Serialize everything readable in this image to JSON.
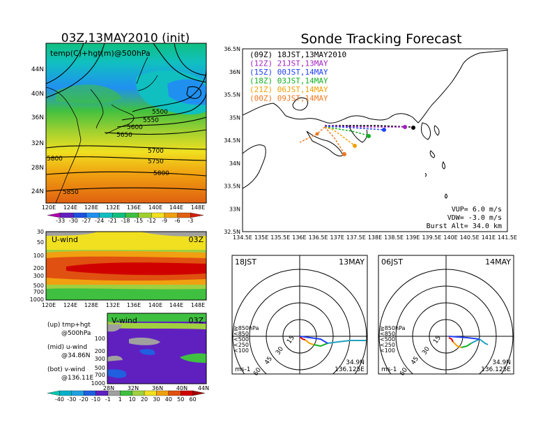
{
  "left_title": "03Z,13MAY2010 (init)",
  "right_title": "Sonde Tracking Forecast",
  "map_panel": {
    "label": "temp(C)+hgt(m)@500hPa",
    "lat_labels": [
      "44N",
      "40N",
      "36N",
      "32N",
      "28N",
      "24N"
    ],
    "lon_labels": [
      "120E",
      "124E",
      "128E",
      "132E",
      "136E",
      "140E",
      "144E",
      "148E"
    ],
    "contour_labels": [
      "5500",
      "5550",
      "5600",
      "5650",
      "5700",
      "5750",
      "5800",
      "5850",
      "5800"
    ]
  },
  "temp_colorbar": {
    "labels": [
      "-33",
      "-30",
      "-27",
      "-24",
      "-21",
      "-18",
      "-15",
      "-12",
      "-9",
      "-6",
      "-3"
    ]
  },
  "u_panel": {
    "label": "U-wind",
    "time": "03Z",
    "levels": [
      "30",
      "50",
      "100",
      "200",
      "300",
      "500",
      "700",
      "1000"
    ],
    "lon_labels": [
      "120E",
      "124E",
      "128E",
      "132E",
      "136E",
      "140E",
      "144E",
      "148E"
    ]
  },
  "v_panel": {
    "label": "V-wind",
    "time": "03Z",
    "levels": [
      "100",
      "200",
      "300",
      "500",
      "700",
      "1000"
    ],
    "lat_labels": [
      "28N",
      "32N",
      "36N",
      "40N",
      "44N"
    ]
  },
  "notes": [
    [
      "(up) tmp+hgt",
      "@500hPa"
    ],
    [
      "(mid) u-wind",
      "@34.86N"
    ],
    [
      "(bot) v-wind",
      "@136.11E"
    ]
  ],
  "wind_colorbar": {
    "labels": [
      "-40",
      "-30",
      "-20",
      "-10",
      "-1",
      "1",
      "10",
      "20",
      "30",
      "40",
      "50",
      "60"
    ]
  },
  "track_map": {
    "lat_labels": [
      "36.5N",
      "36N",
      "35.5N",
      "35N",
      "34.5N",
      "34N",
      "33.5N",
      "33N",
      "32.5N"
    ],
    "lon_labels": [
      "134.5E",
      "135E",
      "135.5E",
      "136E",
      "136.5E",
      "137E",
      "137.5E",
      "138E",
      "138.5E",
      "139E",
      "139.5E",
      "140E",
      "140.5E",
      "141E",
      "141.5E"
    ],
    "legend": [
      {
        "text": "(09Z)  18JST,13MAY2010",
        "color": "#000000"
      },
      {
        "text": "(12Z)  21JST,13MAY",
        "color": "#a020c0"
      },
      {
        "text": "(15Z)  00JST,14MAY",
        "color": "#2040ff"
      },
      {
        "text": "(18Z)  03JST,14MAY",
        "color": "#10b020"
      },
      {
        "text": "(21Z)  06JST,14MAY",
        "color": "#f0a000"
      },
      {
        "text": "(00Z)  09JST,14MAY",
        "color": "#f07820"
      }
    ],
    "params": [
      "VUP= 6.0 m/s",
      "VDW= -3.0 m/s",
      "Burst Alt= 34.0 km"
    ]
  },
  "hodographs": [
    {
      "time": "18JST",
      "date": "13MAY",
      "ring_labels": [
        "15",
        "30",
        "45",
        "60"
      ],
      "unit": "ms-1",
      "lat": "34.9N",
      "lon": "136.125E",
      "level_labels": [
        "≧850hPa",
        "<850",
        "<500",
        "<250",
        "<100"
      ]
    },
    {
      "time": "06JST",
      "date": "14MAY",
      "ring_labels": [
        "15",
        "30",
        "45",
        "60"
      ],
      "unit": "ms-1",
      "lat": "34.9N",
      "lon": "136.125E",
      "level_labels": [
        "≧850hPa",
        "<850",
        "<500",
        "<250",
        "<100"
      ]
    }
  ],
  "colors": {
    "level_colors": [
      "#e00000",
      "#f0a000",
      "#10b020",
      "#20a0c0",
      "#2040ff"
    ],
    "temp_scale": [
      "#b000b0",
      "#6020c0",
      "#2050e0",
      "#2090f0",
      "#10c0c0",
      "#10c080",
      "#40c040",
      "#a0d030",
      "#f0e020",
      "#f0a010",
      "#e06010",
      "#d02010"
    ],
    "wind_scale": [
      "#00b0c8",
      "#20a0e0",
      "#2060e0",
      "#6020c0",
      "#a0a0a0",
      "#40c040",
      "#a0d040",
      "#f0e020",
      "#f0a010",
      "#e05010",
      "#d00000"
    ]
  }
}
